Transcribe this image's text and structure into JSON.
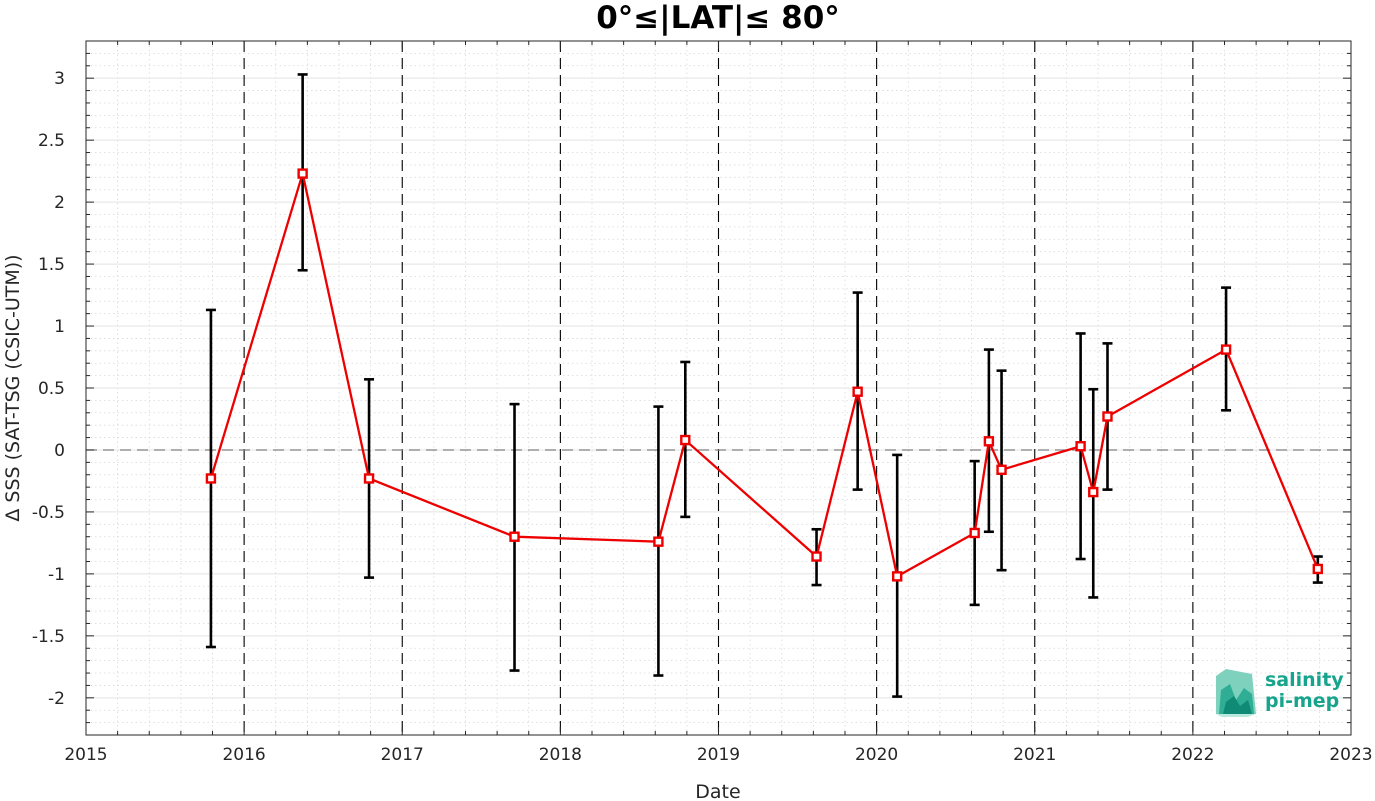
{
  "chart_data": {
    "type": "line",
    "title": "0°≤|LAT|≤ 80°",
    "xlabel": "Date",
    "ylabel": "Δ SSS (SAT-TSG (CSIC-UTM))",
    "xlim": [
      2015,
      2023
    ],
    "ylim": [
      -2.3,
      3.3
    ],
    "x_ticks": [
      "2015",
      "2016",
      "2017",
      "2018",
      "2019",
      "2020",
      "2021",
      "2022",
      "2023"
    ],
    "y_ticks": [
      "-2",
      "-1.5",
      "-1",
      "-0.5",
      "0",
      "0.5",
      "1",
      "1.5",
      "2",
      "2.5",
      "3"
    ],
    "x_tick_values": [
      2015,
      2016,
      2017,
      2018,
      2019,
      2020,
      2021,
      2022,
      2023
    ],
    "y_tick_values": [
      -2,
      -1.5,
      -1,
      -0.5,
      0,
      0.5,
      1,
      1.5,
      2,
      2.5,
      3
    ],
    "grid": true,
    "year_dividers": [
      2016,
      2017,
      2018,
      2019,
      2020,
      2021,
      2022
    ],
    "zero_line": 0,
    "series": [
      {
        "x": [
          2015.79,
          2016.37,
          2016.79,
          2017.71,
          2018.62,
          2018.79,
          2019.62,
          2019.88,
          2020.13,
          2020.62,
          2020.71,
          2020.79,
          2021.29,
          2021.37,
          2021.46,
          2022.21,
          2022.79
        ],
        "y": [
          -0.23,
          2.23,
          -0.23,
          -0.7,
          -0.74,
          0.08,
          -0.86,
          0.47,
          -1.02,
          -0.67,
          0.07,
          -0.16,
          0.03,
          -0.34,
          0.27,
          0.81,
          -0.96
        ],
        "err_low": [
          -1.59,
          1.45,
          -1.03,
          -1.78,
          -1.82,
          -0.54,
          -1.09,
          -0.32,
          -1.99,
          -1.25,
          -0.66,
          -0.97,
          -0.88,
          -1.19,
          -0.32,
          0.32,
          -1.07
        ],
        "err_high": [
          1.13,
          3.03,
          0.57,
          0.37,
          0.35,
          0.71,
          -0.64,
          1.27,
          -0.04,
          -0.09,
          0.81,
          0.64,
          0.94,
          0.49,
          0.86,
          1.31,
          -0.86
        ]
      }
    ],
    "colors": {
      "series_line": "#ee0000",
      "error_bar": "#000000",
      "zero_line": "#7f7f7f",
      "divider": "#000000",
      "grid": "#e3e3e3",
      "axis": "#262626",
      "logo": "#17a48c"
    }
  },
  "logo": {
    "line1": "salinity",
    "line2": "pi-mep",
    "icon": "salinity-wave-icon"
  }
}
